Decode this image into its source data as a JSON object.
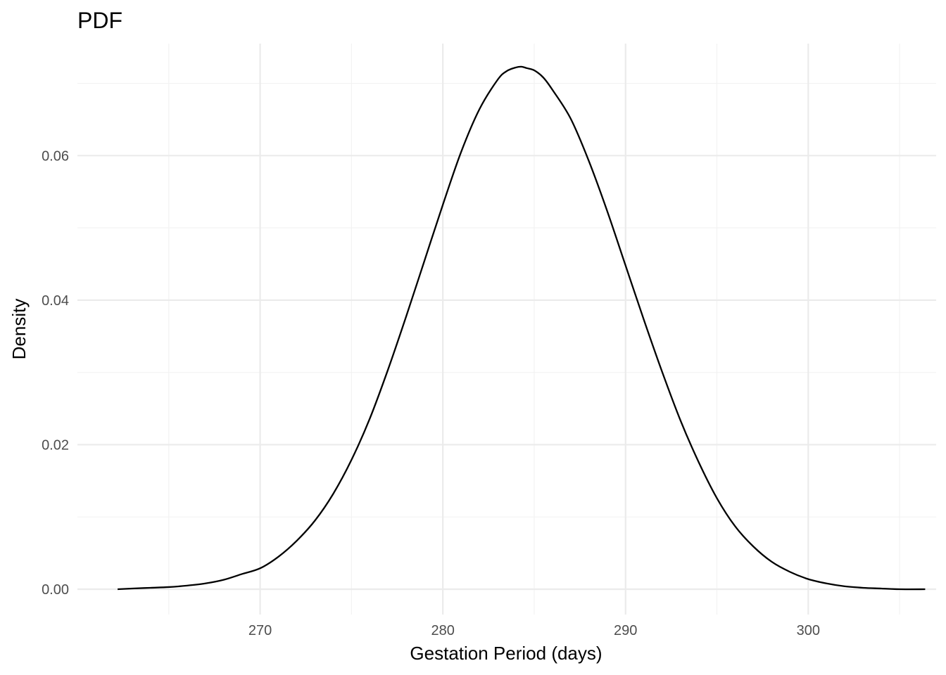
{
  "chart_data": {
    "type": "line",
    "title": "PDF",
    "xlabel": "Gestation Period (days)",
    "ylabel": "Density",
    "xlim": [
      260,
      307
    ],
    "ylim": [
      -0.0035,
      0.0755
    ],
    "x_ticks": [
      270,
      280,
      290,
      300
    ],
    "x_tick_labels": [
      "270",
      "280",
      "290",
      "300"
    ],
    "x_minor_ticks": [
      265,
      275,
      285,
      295,
      305
    ],
    "y_ticks": [
      0,
      0.02,
      0.04,
      0.06
    ],
    "y_tick_labels": [
      "0.00",
      "0.02",
      "0.04",
      "0.06"
    ],
    "y_minor_ticks": [
      0.01,
      0.03,
      0.05,
      0.07
    ],
    "grid": true,
    "legend": "none",
    "line_color": "#000000",
    "series": [
      {
        "x": [
          262.2,
          263,
          264,
          265,
          266,
          267,
          268,
          269,
          270,
          271,
          272,
          273,
          274,
          275,
          276,
          277,
          278,
          279,
          280,
          281,
          282,
          283,
          283.5,
          284,
          284.3,
          284.6,
          285,
          285.5,
          286,
          287,
          288,
          289,
          290,
          291,
          292,
          293,
          294,
          295,
          296,
          297,
          298,
          299,
          300,
          301,
          302,
          303,
          304,
          305,
          306.4
        ],
        "y": [
          0.0,
          0.0001,
          0.0002,
          0.0003,
          0.0005,
          0.0008,
          0.0013,
          0.0021,
          0.0029,
          0.0045,
          0.0067,
          0.0095,
          0.0132,
          0.0179,
          0.0236,
          0.0304,
          0.0378,
          0.0455,
          0.0532,
          0.0605,
          0.0664,
          0.0705,
          0.0717,
          0.0722,
          0.0723,
          0.0721,
          0.0718,
          0.0708,
          0.0691,
          0.0651,
          0.0592,
          0.0523,
          0.0448,
          0.0373,
          0.0301,
          0.0234,
          0.0176,
          0.0126,
          0.0087,
          0.0059,
          0.0038,
          0.0024,
          0.0014,
          0.0008,
          0.0004,
          0.0002,
          0.0001,
          0.0,
          0.0
        ]
      }
    ]
  }
}
